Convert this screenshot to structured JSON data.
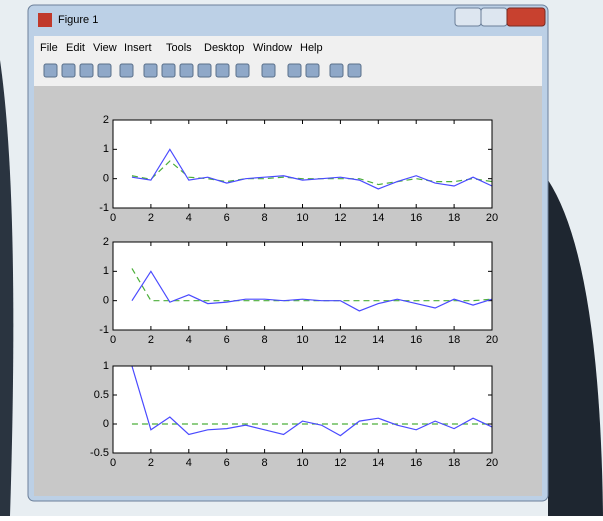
{
  "window": {
    "title": "Figure 1",
    "menu": [
      "File",
      "Edit",
      "View",
      "Insert",
      "Tools",
      "Desktop",
      "Window",
      "Help"
    ]
  },
  "chart_data": [
    {
      "type": "line",
      "x": [
        1,
        2,
        3,
        4,
        5,
        6,
        7,
        8,
        9,
        10,
        11,
        12,
        13,
        14,
        15,
        16,
        17,
        18,
        19,
        20
      ],
      "xlim": [
        0,
        20
      ],
      "xticks": [
        0,
        2,
        4,
        6,
        8,
        10,
        12,
        14,
        16,
        18,
        20
      ],
      "ylim": [
        -1,
        2
      ],
      "yticks": [
        -1,
        0,
        1,
        2
      ],
      "series": [
        {
          "color": "#4a4aff",
          "style": "solid",
          "values": [
            0.05,
            -0.05,
            1.0,
            -0.05,
            0.05,
            -0.15,
            0.0,
            0.05,
            0.1,
            -0.05,
            0.0,
            0.05,
            -0.05,
            -0.35,
            -0.1,
            0.1,
            -0.15,
            -0.25,
            0.05,
            -0.25
          ]
        },
        {
          "color": "#4caf3a",
          "style": "dashed",
          "values": [
            0.1,
            -0.02,
            0.6,
            0.05,
            0.0,
            -0.1,
            0.0,
            0.0,
            0.05,
            0.0,
            0.0,
            0.0,
            0.0,
            -0.2,
            -0.1,
            0.0,
            -0.1,
            -0.1,
            0.0,
            -0.1
          ]
        }
      ]
    },
    {
      "type": "line",
      "x": [
        1,
        2,
        3,
        4,
        5,
        6,
        7,
        8,
        9,
        10,
        11,
        12,
        13,
        14,
        15,
        16,
        17,
        18,
        19,
        20
      ],
      "xlim": [
        0,
        20
      ],
      "xticks": [
        0,
        2,
        4,
        6,
        8,
        10,
        12,
        14,
        16,
        18,
        20
      ],
      "ylim": [
        -1,
        2
      ],
      "yticks": [
        -1,
        0,
        1,
        2
      ],
      "series": [
        {
          "color": "#4a4aff",
          "style": "solid",
          "values": [
            0,
            1.0,
            -0.05,
            0.2,
            -0.1,
            -0.05,
            0.05,
            0.05,
            0.0,
            0.05,
            0.0,
            0.0,
            -0.35,
            -0.1,
            0.05,
            -0.1,
            -0.25,
            0.05,
            -0.15,
            0.05
          ]
        },
        {
          "color": "#4caf3a",
          "style": "dashed",
          "values": [
            1.1,
            0,
            0,
            0,
            0,
            0,
            0,
            0,
            0,
            0,
            0,
            0,
            0,
            0,
            0,
            0,
            0,
            0,
            0,
            0.05
          ]
        }
      ]
    },
    {
      "type": "line",
      "x": [
        1,
        2,
        3,
        4,
        5,
        6,
        7,
        8,
        9,
        10,
        11,
        12,
        13,
        14,
        15,
        16,
        17,
        18,
        19,
        20
      ],
      "xlim": [
        0,
        20
      ],
      "xticks": [
        0,
        2,
        4,
        6,
        8,
        10,
        12,
        14,
        16,
        18,
        20
      ],
      "ylim": [
        -0.5,
        1
      ],
      "yticks": [
        -0.5,
        0,
        0.5,
        1
      ],
      "series": [
        {
          "color": "#4a4aff",
          "style": "solid",
          "values": [
            1.0,
            -0.1,
            0.12,
            -0.18,
            -0.1,
            -0.08,
            -0.02,
            -0.1,
            -0.18,
            0.05,
            -0.02,
            -0.2,
            0.05,
            0.1,
            -0.02,
            -0.1,
            0.05,
            -0.08,
            0.1,
            -0.05
          ]
        },
        {
          "color": "#4caf3a",
          "style": "dashed",
          "values": [
            0,
            0,
            0,
            0,
            0,
            0,
            0,
            0,
            0,
            0,
            0,
            0,
            0,
            0,
            0,
            0,
            0,
            0,
            0,
            0
          ]
        }
      ]
    }
  ]
}
